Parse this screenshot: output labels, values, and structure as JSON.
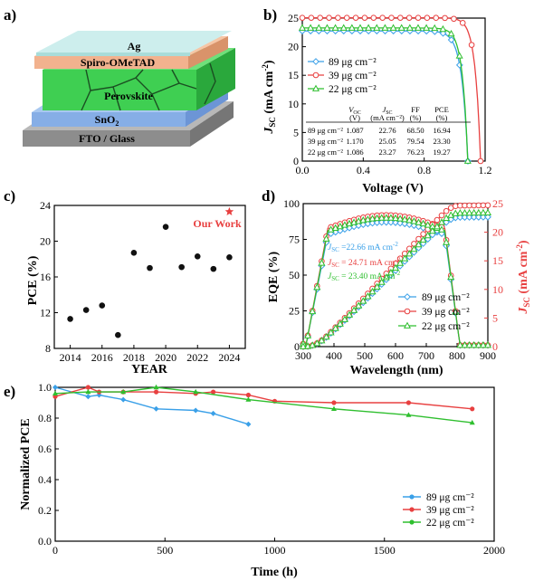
{
  "panel_labels": {
    "a": "a)",
    "b": "b)",
    "c": "c)",
    "d": "d)",
    "e": "e)"
  },
  "panel_a": {
    "layers": [
      "Ag",
      "Spiro-OMeTAD",
      "Perovskite",
      "SnO2",
      "FTO / Glass"
    ],
    "colors": {
      "ag": "#bfe6e4",
      "spiro": "#f2b28e",
      "perovskite": "#3fcf52",
      "sno2": "#8bb3e6",
      "fto": "#9a9a9a"
    }
  },
  "colors": {
    "s89": "#3aa0e8",
    "s39": "#e84040",
    "s22": "#2fbf2f",
    "accent": "#e84040"
  },
  "series_names": [
    "89 μg cm⁻²",
    "39 μg cm⁻²",
    "22 μg cm⁻²"
  ],
  "table": {
    "headers": [
      "V_OC",
      "J_SC",
      "FF",
      "PCE"
    ],
    "units": [
      "(V)",
      "(mA cm⁻²)",
      "(%)",
      "(%)"
    ],
    "rows": [
      {
        "label": "89 μg cm⁻²",
        "voc": "1.087",
        "jsc": "22.76",
        "ff": "68.50",
        "pce": "16.94"
      },
      {
        "label": "39 μg cm⁻²",
        "voc": "1.170",
        "jsc": "25.05",
        "ff": "79.54",
        "pce": "23.30"
      },
      {
        "label": "22 μg cm⁻²",
        "voc": "1.086",
        "jsc": "23.27",
        "ff": "76.23",
        "pce": "19.27"
      }
    ]
  },
  "eqe_annotations": [
    "J_SC = 22.66 mA cm⁻²",
    "J_SC = 24.71 mA cm⁻²",
    "J_SC = 23.40 mA cm⁻²"
  ],
  "our_work_label": "Our Work",
  "chart_data": [
    {
      "id": "b",
      "type": "line",
      "xlabel": "Voltage (V)",
      "ylabel": "J_SC (mA cm⁻²)",
      "xlim": [
        0,
        1.2
      ],
      "ylim": [
        0,
        25
      ],
      "xticks": [
        "0.0",
        "0.4",
        "0.8",
        "1.2"
      ],
      "yticks": [
        "0",
        "5",
        "10",
        "15",
        "20",
        "25"
      ],
      "legend": "left",
      "series": [
        {
          "name": "89 μg cm⁻²",
          "jsc": 22.76,
          "voc": 1.087,
          "ff": 68.5
        },
        {
          "name": "39 μg cm⁻²",
          "jsc": 25.05,
          "voc": 1.17,
          "ff": 79.54
        },
        {
          "name": "22 μg cm⁻²",
          "jsc": 23.27,
          "voc": 1.086,
          "ff": 76.23
        }
      ]
    },
    {
      "id": "c",
      "type": "scatter",
      "xlabel": "YEAR",
      "ylabel": "PCE (%)",
      "xlim": [
        2013,
        2025
      ],
      "ylim": [
        8,
        24
      ],
      "xticks": [
        "2014",
        "2016",
        "2018",
        "2020",
        "2022",
        "2024"
      ],
      "yticks": [
        "8",
        "12",
        "16",
        "20",
        "24"
      ],
      "x": [
        2014,
        2015,
        2016,
        2017,
        2018,
        2019,
        2020,
        2021,
        2022,
        2023,
        2024
      ],
      "y": [
        11.3,
        12.3,
        12.8,
        9.5,
        18.7,
        17.0,
        21.6,
        17.1,
        18.3,
        16.9,
        18.2
      ],
      "highlight": {
        "x": 2024,
        "y": 23.3,
        "label": "Our Work"
      }
    },
    {
      "id": "d",
      "type": "line",
      "xlabel": "Wavelength (nm)",
      "ylabel": "EQE (%)",
      "y2label": "J_SC (mA cm⁻²)",
      "xlim": [
        300,
        900
      ],
      "ylim": [
        0,
        100
      ],
      "y2lim": [
        0,
        25
      ],
      "xticks": [
        "300",
        "400",
        "500",
        "600",
        "700",
        "800",
        "900"
      ],
      "yticks": [
        "0",
        "25",
        "50",
        "75",
        "100"
      ],
      "y2ticks": [
        "0",
        "5",
        "10",
        "15",
        "20",
        "25"
      ],
      "legend": "bottom-right",
      "series": [
        {
          "name": "89 μg cm⁻²",
          "plateau": 87,
          "jsc": 22.66
        },
        {
          "name": "39 μg cm⁻²",
          "plateau": 92,
          "jsc": 24.71
        },
        {
          "name": "22 μg cm⁻²",
          "plateau": 90,
          "jsc": 23.4
        }
      ]
    },
    {
      "id": "e",
      "type": "line",
      "xlabel": "Time (h)",
      "ylabel": "Normalized PCE",
      "xlim": [
        0,
        2000
      ],
      "ylim": [
        0,
        1.0
      ],
      "xticks": [
        "0",
        "500",
        "1000",
        "1500",
        "2000"
      ],
      "yticks": [
        "0.0",
        "0.2",
        "0.4",
        "0.6",
        "0.8",
        "1.0"
      ],
      "legend": "bottom-right",
      "series": [
        {
          "name": "89 μg cm⁻²",
          "x": [
            0,
            150,
            200,
            310,
            460,
            640,
            720,
            880
          ],
          "y": [
            1.0,
            0.94,
            0.95,
            0.92,
            0.86,
            0.85,
            0.83,
            0.76
          ]
        },
        {
          "name": "39 μg cm⁻²",
          "x": [
            0,
            150,
            200,
            310,
            460,
            640,
            720,
            880,
            1000,
            1270,
            1610,
            1900
          ],
          "y": [
            0.94,
            1.0,
            0.97,
            0.97,
            0.97,
            0.96,
            0.97,
            0.95,
            0.91,
            0.9,
            0.9,
            0.86
          ]
        },
        {
          "name": "22 μg cm⁻²",
          "x": [
            0,
            150,
            310,
            460,
            640,
            880,
            1270,
            1610,
            1900
          ],
          "y": [
            0.96,
            0.97,
            0.97,
            1.0,
            0.97,
            0.92,
            0.86,
            0.82,
            0.77
          ]
        }
      ]
    }
  ]
}
